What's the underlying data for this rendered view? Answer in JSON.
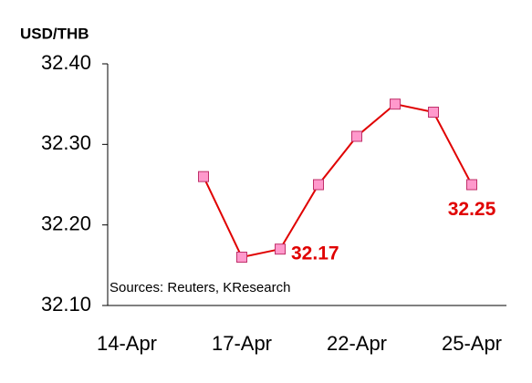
{
  "chart_data": {
    "type": "line",
    "title": "USD/THB",
    "annotation": "Sources: Reuters, KResearch",
    "categories": [
      "14-Apr",
      null,
      null,
      "17-Apr",
      null,
      null,
      "22-Apr",
      null,
      null,
      "25-Apr"
    ],
    "series": [
      {
        "name": "USD/THB",
        "color": "#e00000",
        "marker_color": "#ff99cc",
        "values": [
          null,
          null,
          32.26,
          32.16,
          32.17,
          32.25,
          32.31,
          32.35,
          32.34,
          32.25
        ],
        "value_labels": [
          null,
          null,
          null,
          null,
          "32.17",
          null,
          null,
          null,
          null,
          "32.25"
        ]
      }
    ],
    "ylim": [
      32.1,
      32.4
    ],
    "yticks": [
      {
        "value": 32.1,
        "label": "32.10"
      },
      {
        "value": 32.2,
        "label": "32.20"
      },
      {
        "value": 32.3,
        "label": "32.30"
      },
      {
        "value": 32.4,
        "label": "32.40"
      }
    ],
    "grid": false
  }
}
